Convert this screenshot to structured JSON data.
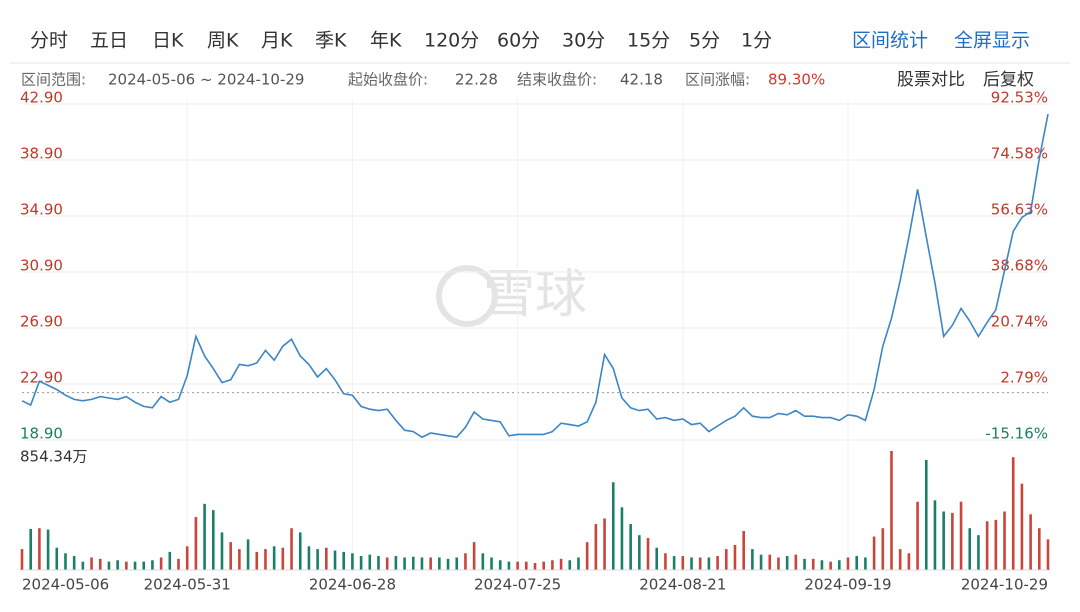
{
  "toolbar": {
    "periods": [
      "分时",
      "五日",
      "日K",
      "周K",
      "月K",
      "季K",
      "年K",
      "120分",
      "60分",
      "30分",
      "15分",
      "5分",
      "1分"
    ],
    "actions": [
      "区间统计",
      "全屏显示"
    ]
  },
  "info": {
    "range_label": "区间范围:",
    "range": "2024-05-06 ~ 2024-10-29",
    "start_label": "起始收盘价:",
    "start_price": 22.28,
    "end_label": "结束收盘价:",
    "end_price": 42.18,
    "change_label": "区间涨幅:",
    "change": "89.30%",
    "compare": "股票对比",
    "adjust": "后复权"
  },
  "watermark": "雪球",
  "chart_data": [
    {
      "type": "line",
      "color": "#3b86c6",
      "up_color": "#c0392b",
      "down_color": "#1a7f64",
      "grid": true,
      "values": [
        21.7,
        21.4,
        23.1,
        22.8,
        22.5,
        22.1,
        21.8,
        21.7,
        21.8,
        22.0,
        21.9,
        21.8,
        22.0,
        21.6,
        21.3,
        21.2,
        22.0,
        21.6,
        21.8,
        23.5,
        26.3,
        24.9,
        24.0,
        23.0,
        23.2,
        24.3,
        24.2,
        24.4,
        25.3,
        24.6,
        25.6,
        26.1,
        24.9,
        24.3,
        23.4,
        24.0,
        23.2,
        22.2,
        22.1,
        21.3,
        21.1,
        21.0,
        21.1,
        20.3,
        19.6,
        19.5,
        19.1,
        19.4,
        19.3,
        19.2,
        19.1,
        19.8,
        20.9,
        20.4,
        20.3,
        20.2,
        19.2,
        19.3,
        19.3,
        19.3,
        19.3,
        19.5,
        20.1,
        20.0,
        19.9,
        20.2,
        21.6,
        25.0,
        24.0,
        21.9,
        21.2,
        21.0,
        21.1,
        20.4,
        20.5,
        20.3,
        20.4,
        20.0,
        20.1,
        19.5,
        19.9,
        20.3,
        20.6,
        21.2,
        20.6,
        20.5,
        20.5,
        20.8,
        20.7,
        21.0,
        20.6,
        20.6,
        20.5,
        20.5,
        20.3,
        20.7,
        20.6,
        20.3,
        22.5,
        25.6,
        27.6,
        30.3,
        33.4,
        36.8,
        33.4,
        30.1,
        26.3,
        27.1,
        28.3,
        27.4,
        26.3,
        27.3,
        28.2,
        31.0,
        33.8,
        34.8,
        35.2,
        39.0,
        42.18
      ],
      "ylim": [
        18.9,
        42.9
      ],
      "yticks": [
        {
          "value": 42.9,
          "label": "42.90"
        },
        {
          "value": 38.9,
          "label": "38.90"
        },
        {
          "value": 34.9,
          "label": "34.90"
        },
        {
          "value": 30.9,
          "label": "30.90"
        },
        {
          "value": 26.9,
          "label": "26.90"
        },
        {
          "value": 22.9,
          "label": "22.90"
        },
        {
          "value": 18.9,
          "label": "18.90"
        }
      ],
      "y2lim": [
        -15.16,
        92.53
      ],
      "y2ticks": [
        {
          "value": 92.53,
          "label": "92.53%"
        },
        {
          "value": 74.58,
          "label": "74.58%"
        },
        {
          "value": 56.63,
          "label": "56.63%"
        },
        {
          "value": 38.68,
          "label": "38.68%"
        },
        {
          "value": 20.74,
          "label": "20.74%"
        },
        {
          "value": 2.79,
          "label": "2.79%"
        },
        {
          "value": -15.16,
          "label": "-15.16%"
        }
      ]
    },
    {
      "type": "bar",
      "up_color": "#c9453a",
      "down_color": "#1a7f64",
      "categories": [
        "2024-05-06",
        null,
        null,
        null,
        null,
        null,
        null,
        null,
        null,
        null,
        null,
        null,
        null,
        null,
        null,
        null,
        null,
        null,
        null,
        "2024-05-31",
        null,
        null,
        null,
        null,
        null,
        null,
        null,
        null,
        null,
        null,
        null,
        null,
        null,
        null,
        null,
        null,
        null,
        null,
        "2024-06-28",
        null,
        null,
        null,
        null,
        null,
        null,
        null,
        null,
        null,
        null,
        null,
        null,
        null,
        null,
        null,
        null,
        null,
        null,
        "2024-07-25",
        null,
        null,
        null,
        null,
        null,
        null,
        null,
        null,
        null,
        null,
        null,
        null,
        null,
        null,
        null,
        null,
        null,
        null,
        "2024-08-21",
        null,
        null,
        null,
        null,
        null,
        null,
        null,
        null,
        null,
        null,
        null,
        null,
        null,
        null,
        null,
        null,
        null,
        null,
        "2024-09-19",
        null,
        null,
        null,
        null,
        null,
        null,
        null,
        null,
        null,
        null,
        null,
        null,
        null,
        null,
        null,
        null,
        null,
        null,
        null,
        null,
        null,
        null,
        "2024-10-29"
      ],
      "values": [
        150,
        295,
        300,
        290,
        160,
        120,
        100,
        60,
        90,
        80,
        60,
        70,
        60,
        60,
        60,
        70,
        90,
        130,
        80,
        170,
        380,
        475,
        430,
        270,
        200,
        150,
        220,
        130,
        150,
        170,
        160,
        300,
        270,
        170,
        150,
        160,
        140,
        130,
        120,
        100,
        110,
        100,
        90,
        100,
        90,
        95,
        90,
        90,
        90,
        80,
        90,
        120,
        200,
        120,
        90,
        70,
        60,
        60,
        60,
        50,
        60,
        70,
        80,
        70,
        90,
        200,
        330,
        370,
        630,
        450,
        330,
        250,
        230,
        160,
        120,
        100,
        100,
        90,
        90,
        90,
        100,
        150,
        180,
        280,
        150,
        110,
        110,
        90,
        100,
        110,
        80,
        80,
        70,
        60,
        70,
        90,
        100,
        90,
        240,
        300,
        854.34,
        150,
        120,
        490,
        790,
        500,
        420,
        410,
        490,
        300,
        250,
        350,
        360,
        420,
        810,
        620,
        400,
        300,
        220
      ],
      "ylim": [
        0,
        854.34
      ],
      "yticks": [
        {
          "value": 854.34,
          "label": "854.34万"
        }
      ]
    }
  ]
}
